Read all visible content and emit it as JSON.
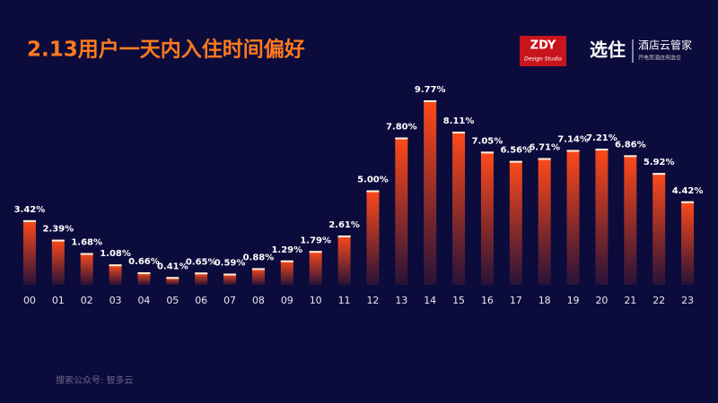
{
  "chart_data": {
    "type": "bar",
    "title": "2.13用户一天内入住时间偏好",
    "categories": [
      "00",
      "01",
      "02",
      "03",
      "04",
      "05",
      "06",
      "07",
      "08",
      "09",
      "10",
      "11",
      "12",
      "13",
      "14",
      "15",
      "16",
      "17",
      "18",
      "19",
      "20",
      "21",
      "22",
      "23"
    ],
    "values": [
      3.42,
      2.39,
      1.68,
      1.08,
      0.66,
      0.41,
      0.65,
      0.59,
      0.88,
      1.29,
      1.79,
      2.61,
      5.0,
      7.8,
      9.77,
      8.11,
      7.05,
      6.56,
      6.71,
      7.14,
      7.21,
      6.86,
      5.92,
      4.42
    ],
    "value_labels": [
      "3.42%",
      "2.39%",
      "1.68%",
      "1.08%",
      "0.66%",
      "0.41%",
      "0.65%",
      "0.59%",
      "0.88%",
      "1.29%",
      "1.79%",
      "2.61%",
      "5.00%",
      "7.80%",
      "9.77%",
      "8.11%",
      "7.05%",
      "6.56%",
      "6.71%",
      "7.14%",
      "7.21%",
      "6.86%",
      "5.92%",
      "4.42%"
    ],
    "color": "#ff4a1a"
  },
  "logos": {
    "zdy": "ZDY",
    "zdy_sub": "Design Studio",
    "brand": "选住",
    "brand_name": "酒店云管家",
    "brand_slogan": "开电竞酒店用选住"
  },
  "footer": "搜索公众号:  智多云"
}
